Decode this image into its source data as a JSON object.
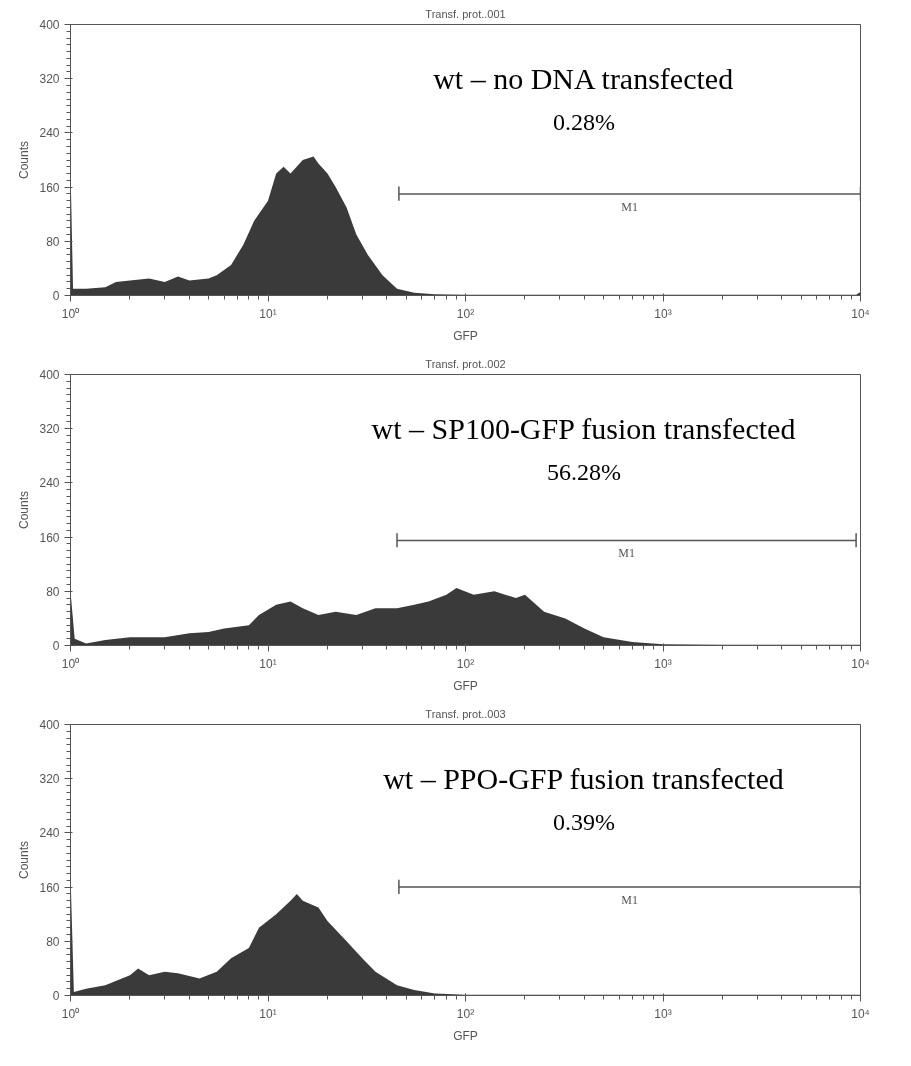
{
  "chart_data": [
    {
      "type": "area",
      "title": "Transf. prot..001",
      "xlabel": "GFP",
      "ylabel": "Counts",
      "log": "x",
      "grid": false,
      "xlim": [
        1,
        10000
      ],
      "ylim": [
        0,
        400
      ],
      "xticks": [
        {
          "value": 1,
          "label": "10⁰"
        },
        {
          "value": 10,
          "label": "10¹"
        },
        {
          "value": 100,
          "label": "10²"
        },
        {
          "value": 1000,
          "label": "10³"
        },
        {
          "value": 10000,
          "label": "10⁴"
        }
      ],
      "yticks": [
        0,
        80,
        160,
        240,
        320,
        400
      ],
      "annotations": [
        "wt – no DNA transfected",
        "0.28%"
      ],
      "series": [
        {
          "type": "line",
          "name": "M1",
          "color": "#555555",
          "x": [
            46,
            46,
            46,
            10000,
            10000,
            10000
          ],
          "values": [
            140,
            160,
            150,
            150,
            160,
            140
          ]
        },
        {
          "color": "#3a3a3a",
          "x": [
            1.0,
            1.03,
            1.2,
            1.5,
            1.7,
            2,
            2.5,
            3,
            3.5,
            4,
            5,
            5.5,
            6.5,
            7.5,
            8.5,
            10,
            11,
            12,
            13,
            15,
            17,
            18,
            20,
            22,
            25,
            28,
            32,
            38,
            45,
            55,
            70,
            100,
            1000,
            9500,
            10000
          ],
          "values": [
            190,
            10,
            10,
            12,
            20,
            22,
            25,
            20,
            28,
            22,
            25,
            30,
            45,
            75,
            110,
            140,
            180,
            190,
            180,
            200,
            205,
            195,
            180,
            160,
            130,
            90,
            60,
            30,
            10,
            4,
            2,
            1,
            1,
            1,
            5
          ]
        }
      ]
    },
    {
      "type": "area",
      "title": "Transf. prot..002",
      "xlabel": "GFP",
      "ylabel": "Counts",
      "log": "x",
      "grid": false,
      "xlim": [
        1,
        10000
      ],
      "ylim": [
        0,
        400
      ],
      "xticks": [
        {
          "value": 1,
          "label": "10⁰"
        },
        {
          "value": 10,
          "label": "10¹"
        },
        {
          "value": 100,
          "label": "10²"
        },
        {
          "value": 1000,
          "label": "10³"
        },
        {
          "value": 10000,
          "label": "10⁴"
        }
      ],
      "yticks": [
        0,
        80,
        160,
        240,
        320,
        400
      ],
      "annotations": [
        "wt – SP100-GFP fusion transfected",
        "56.28%"
      ],
      "series": [
        {
          "type": "line",
          "name": "M1",
          "color": "#555555",
          "x": [
            45,
            45,
            45,
            9500,
            9500,
            9500
          ],
          "values": [
            145,
            165,
            155,
            155,
            165,
            145
          ]
        },
        {
          "color": "#3a3a3a",
          "x": [
            1.0,
            1.05,
            1.2,
            1.5,
            2,
            3,
            4,
            5,
            6,
            8,
            9,
            11,
            13,
            15,
            18,
            22,
            28,
            35,
            45,
            55,
            65,
            80,
            90,
            110,
            140,
            180,
            200,
            250,
            320,
            400,
            500,
            700,
            1000,
            2000,
            10000
          ],
          "values": [
            80,
            10,
            3,
            8,
            12,
            12,
            18,
            20,
            25,
            30,
            45,
            60,
            65,
            55,
            45,
            50,
            45,
            55,
            55,
            60,
            65,
            75,
            85,
            75,
            80,
            70,
            75,
            50,
            40,
            25,
            12,
            5,
            2,
            1,
            1
          ]
        }
      ]
    },
    {
      "type": "area",
      "title": "Transf. prot..003",
      "xlabel": "GFP",
      "ylabel": "Counts",
      "log": "x",
      "grid": false,
      "xlim": [
        1,
        10000
      ],
      "ylim": [
        0,
        400
      ],
      "xticks": [
        {
          "value": 1,
          "label": "10⁰"
        },
        {
          "value": 10,
          "label": "10¹"
        },
        {
          "value": 100,
          "label": "10²"
        },
        {
          "value": 1000,
          "label": "10³"
        },
        {
          "value": 10000,
          "label": "10⁴"
        }
      ],
      "yticks": [
        0,
        80,
        160,
        240,
        320,
        400
      ],
      "annotations": [
        "wt – PPO-GFP fusion transfected",
        "0.39%"
      ],
      "series": [
        {
          "type": "line",
          "name": "M1",
          "color": "#555555",
          "x": [
            46,
            46,
            46,
            10000,
            10000,
            10000
          ],
          "values": [
            150,
            170,
            160,
            160,
            170,
            150
          ]
        },
        {
          "color": "#3a3a3a",
          "x": [
            1.0,
            1.04,
            1.2,
            1.5,
            2,
            2.2,
            2.5,
            3,
            3.5,
            4.5,
            5.5,
            6.5,
            8,
            9,
            11,
            13,
            14,
            15,
            18,
            20,
            25,
            30,
            35,
            45,
            55,
            70,
            100,
            10000
          ],
          "values": [
            180,
            5,
            10,
            15,
            30,
            40,
            30,
            35,
            33,
            25,
            35,
            55,
            70,
            100,
            120,
            140,
            150,
            140,
            130,
            110,
            80,
            55,
            35,
            15,
            8,
            3,
            1,
            1
          ]
        }
      ]
    }
  ]
}
